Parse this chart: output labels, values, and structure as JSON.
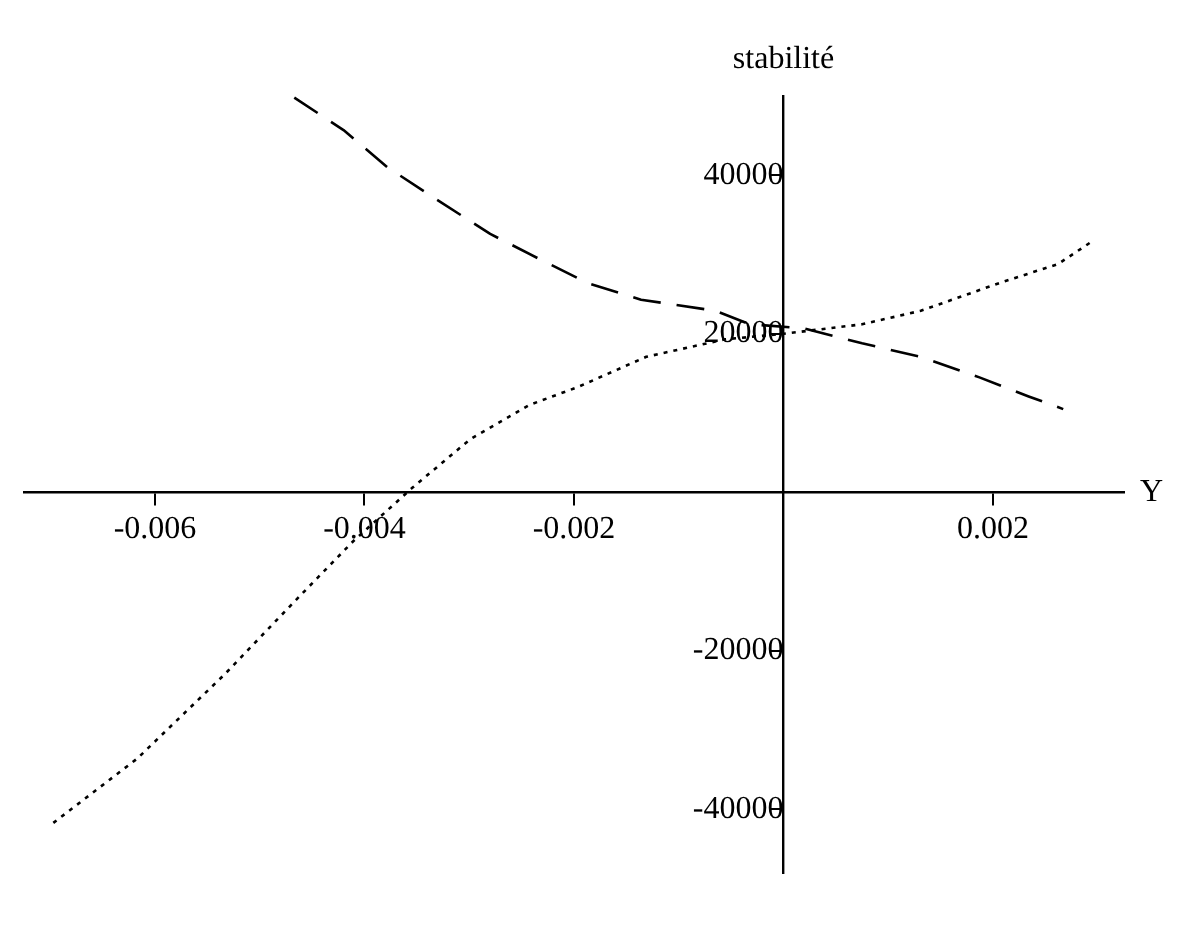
{
  "chart_data": {
    "type": "line",
    "ylabel": "stabilité",
    "xlabel": "Y",
    "xlim": [
      -0.00725,
      0.00325
    ],
    "ylim": [
      -48000,
      50000
    ],
    "xticks": [
      -0.006,
      -0.004,
      -0.002,
      0.002
    ],
    "yticks": [
      -40000,
      -20000,
      20000,
      40000
    ],
    "grid": false,
    "legend": false,
    "marker": "none",
    "series": [
      {
        "color": "#000000",
        "line_style": "dashed",
        "x": [
          -0.00467,
          -0.0042,
          -0.00378,
          -0.00333,
          -0.0028,
          -0.00234,
          -0.00187,
          -0.00136,
          -0.00065,
          -0.00032,
          0.00019,
          0.00075,
          0.00131,
          0.00187,
          0.00234,
          0.00267
        ],
        "values": [
          49800,
          45700,
          41000,
          37100,
          32600,
          29500,
          26400,
          24300,
          22900,
          21200,
          20700,
          18800,
          17100,
          14500,
          12100,
          10500
        ]
      },
      {
        "color": "#000000",
        "line_style": "dotted",
        "x": [
          -0.00697,
          -0.00617,
          -0.00533,
          -0.00467,
          -0.00411,
          -0.00355,
          -0.00299,
          -0.00243,
          -0.00196,
          -0.00131,
          -0.00056,
          0,
          0.00075,
          0.00131,
          0.00206,
          0.00262,
          0.00295
        ],
        "values": [
          -41700,
          -33600,
          -22900,
          -13800,
          -6200,
          500,
          6700,
          11000,
          13300,
          17100,
          19300,
          20000,
          21200,
          22900,
          26400,
          28800,
          31700
        ]
      }
    ]
  }
}
